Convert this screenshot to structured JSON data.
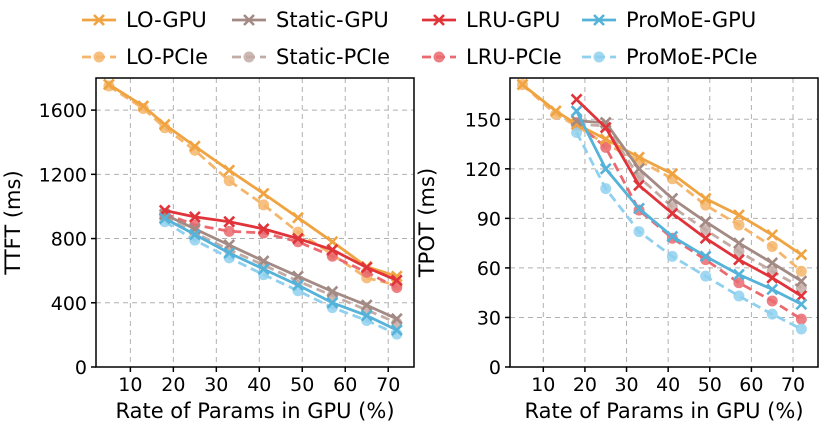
{
  "legend": [
    {
      "id": "lo-gpu",
      "label": "LO-GPU"
    },
    {
      "id": "static-gpu",
      "label": "Static-GPU"
    },
    {
      "id": "lru-gpu",
      "label": "LRU-GPU"
    },
    {
      "id": "promoe-gpu",
      "label": "ProMoE-GPU"
    },
    {
      "id": "lo-pcie",
      "label": "LO-PCIe"
    },
    {
      "id": "static-pcie",
      "label": "Static-PCIe"
    },
    {
      "id": "lru-pcie",
      "label": "LRU-PCIe"
    },
    {
      "id": "promoe-pcie",
      "label": "ProMoE-PCIe"
    }
  ],
  "colors": {
    "lo-gpu": "#f0a341",
    "lo-pcie": "#f5b56a",
    "static-gpu": "#a38a84",
    "static-pcie": "#c4aca6",
    "lru-gpu": "#e0343a",
    "lru-pcie": "#ea6a70",
    "promoe-gpu": "#55b2d9",
    "promoe-pcie": "#8fd0ee"
  },
  "chart_data": [
    {
      "type": "line",
      "title": "",
      "xlabel": "Rate of Params in GPU (%)",
      "ylabel": "TTFT (ms)",
      "xlim": [
        2,
        76
      ],
      "ylim": [
        0,
        1800
      ],
      "xticks": [
        10,
        20,
        30,
        40,
        50,
        60,
        70
      ],
      "yticks": [
        0,
        400,
        800,
        1200,
        1600
      ],
      "grid": true,
      "series": [
        {
          "id": "lo-gpu",
          "name": "LO-GPU",
          "x": [
            5,
            13,
            18,
            25,
            33,
            41,
            49,
            57,
            65,
            72
          ],
          "y": [
            1760,
            1625,
            1510,
            1375,
            1225,
            1080,
            930,
            780,
            625,
            565
          ]
        },
        {
          "id": "lo-pcie",
          "name": "LO-PCIe",
          "x": [
            5,
            13,
            18,
            25,
            33,
            41,
            49,
            57,
            65,
            72
          ],
          "y": [
            1750,
            1610,
            1490,
            1350,
            1160,
            1010,
            840,
            700,
            555,
            510
          ]
        },
        {
          "id": "static-gpu",
          "name": "Static-GPU",
          "x": [
            18,
            25,
            33,
            41,
            49,
            57,
            65,
            72
          ],
          "y": [
            950,
            860,
            760,
            660,
            565,
            470,
            385,
            300
          ]
        },
        {
          "id": "static-pcie",
          "name": "Static-PCIe",
          "x": [
            18,
            25,
            33,
            41,
            49,
            57,
            65,
            72
          ],
          "y": [
            935,
            835,
            730,
            635,
            535,
            445,
            355,
            275
          ]
        },
        {
          "id": "lru-gpu",
          "name": "LRU-GPU",
          "x": [
            18,
            25,
            33,
            41,
            49,
            57,
            65,
            72
          ],
          "y": [
            975,
            935,
            905,
            860,
            800,
            730,
            620,
            540
          ]
        },
        {
          "id": "lru-pcie",
          "name": "LRU-PCIe",
          "x": [
            18,
            25,
            33,
            41,
            49,
            57,
            65,
            72
          ],
          "y": [
            955,
            885,
            845,
            835,
            780,
            690,
            590,
            495
          ]
        },
        {
          "id": "promoe-gpu",
          "name": "ProMoE-GPU",
          "x": [
            18,
            25,
            33,
            41,
            49,
            57,
            65,
            72
          ],
          "y": [
            925,
            825,
            710,
            610,
            510,
            400,
            320,
            230
          ]
        },
        {
          "id": "promoe-pcie",
          "name": "ProMoE-PCIe",
          "x": [
            18,
            25,
            33,
            41,
            49,
            57,
            65,
            72
          ],
          "y": [
            905,
            790,
            680,
            575,
            475,
            370,
            290,
            205
          ]
        }
      ]
    },
    {
      "type": "line",
      "title": "",
      "xlabel": "Rate of Params in GPU (%)",
      "ylabel": "TPOT (ms)",
      "xlim": [
        2,
        76
      ],
      "ylim": [
        0,
        175
      ],
      "xticks": [
        10,
        20,
        30,
        40,
        50,
        60,
        70
      ],
      "yticks": [
        0,
        30,
        60,
        90,
        120,
        150
      ],
      "grid": true,
      "series": [
        {
          "id": "lo-gpu",
          "name": "LO-GPU",
          "x": [
            5,
            13,
            18,
            25,
            33,
            41,
            49,
            57,
            65,
            72
          ],
          "y": [
            171,
            155,
            147,
            138,
            127,
            117,
            102,
            92,
            80,
            68
          ]
        },
        {
          "id": "lo-pcie",
          "name": "LO-PCIe",
          "x": [
            5,
            13,
            18,
            25,
            33,
            41,
            49,
            57,
            65,
            72
          ],
          "y": [
            171,
            153,
            146,
            135,
            125,
            114,
            98,
            86,
            73,
            58
          ]
        },
        {
          "id": "static-gpu",
          "name": "Static-GPU",
          "x": [
            18,
            25,
            33,
            41,
            49,
            57,
            65,
            72
          ],
          "y": [
            149,
            148,
            120,
            102,
            88,
            75,
            63,
            52
          ]
        },
        {
          "id": "static-pcie",
          "name": "Static-PCIe",
          "x": [
            18,
            25,
            33,
            41,
            49,
            57,
            65,
            72
          ],
          "y": [
            147,
            146,
            115,
            97,
            83,
            70,
            58,
            48
          ]
        },
        {
          "id": "lru-gpu",
          "name": "LRU-GPU",
          "x": [
            18,
            25,
            33,
            41,
            49,
            57,
            65,
            72
          ],
          "y": [
            162,
            145,
            110,
            93,
            78,
            65,
            54,
            43
          ]
        },
        {
          "id": "lru-pcie",
          "name": "LRU-PCIe",
          "x": [
            18,
            25,
            33,
            41,
            49,
            57,
            65,
            72
          ],
          "y": [
            148,
            133,
            95,
            78,
            65,
            51,
            40,
            29
          ]
        },
        {
          "id": "promoe-gpu",
          "name": "ProMoE-GPU",
          "x": [
            18,
            25,
            33,
            41,
            49,
            57,
            65,
            72
          ],
          "y": [
            155,
            120,
            96,
            79,
            67,
            56,
            47,
            38
          ]
        },
        {
          "id": "promoe-pcie",
          "name": "ProMoE-PCIe",
          "x": [
            18,
            25,
            33,
            41,
            49,
            57,
            65,
            72
          ],
          "y": [
            142,
            108,
            82,
            67,
            55,
            43,
            32,
            23
          ]
        }
      ]
    }
  ]
}
